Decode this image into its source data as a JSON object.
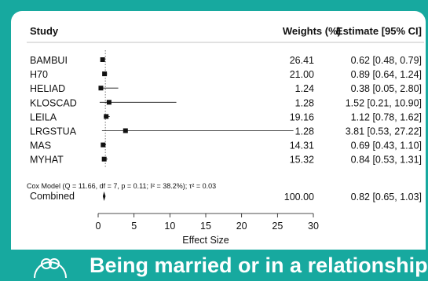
{
  "header": {
    "study": "Study",
    "weights": "Weights (%)",
    "estimate": "Estimate [95% CI]"
  },
  "chart_data": {
    "type": "forest",
    "xlabel": "Effect Size",
    "xlim": [
      0,
      30
    ],
    "xticks": [
      0,
      5,
      10,
      15,
      20,
      25,
      30
    ],
    "reference_line": 1,
    "studies": [
      {
        "name": "BAMBUI",
        "estimate": 0.62,
        "lower": 0.48,
        "upper": 0.79,
        "weight": "26.41",
        "ci_text": "0.62 [0.48, 0.79]"
      },
      {
        "name": "H70",
        "estimate": 0.89,
        "lower": 0.64,
        "upper": 1.24,
        "weight": "21.00",
        "ci_text": "0.89 [0.64, 1.24]"
      },
      {
        "name": "HELIAD",
        "estimate": 0.38,
        "lower": 0.05,
        "upper": 2.8,
        "weight": "1.24",
        "ci_text": "0.38 [0.05, 2.80]"
      },
      {
        "name": "KLOSCAD",
        "estimate": 1.52,
        "lower": 0.21,
        "upper": 10.9,
        "weight": "1.28",
        "ci_text": "1.52 [0.21, 10.90]"
      },
      {
        "name": "LEILA",
        "estimate": 1.12,
        "lower": 0.78,
        "upper": 1.62,
        "weight": "19.16",
        "ci_text": "1.12 [0.78, 1.62]"
      },
      {
        "name": "LRGSTUA",
        "estimate": 3.81,
        "lower": 0.53,
        "upper": 27.22,
        "weight": "1.28",
        "ci_text": "3.81 [0.53, 27.22]"
      },
      {
        "name": "MAS",
        "estimate": 0.69,
        "lower": 0.43,
        "upper": 1.1,
        "weight": "14.31",
        "ci_text": "0.69 [0.43, 1.10]"
      },
      {
        "name": "MYHAT",
        "estimate": 0.84,
        "lower": 0.53,
        "upper": 1.31,
        "weight": "15.32",
        "ci_text": "0.84 [0.53, 1.31]"
      }
    ],
    "summary": {
      "note": "Cox Model (Q = 11.66, df = 7, p = 0.11; I² = 38.2%); τ² = 0.03",
      "name": "Combined",
      "estimate": 0.82,
      "lower": 0.65,
      "upper": 1.03,
      "weight": "100.00",
      "ci_text": "0.82 [0.65, 1.03]"
    }
  },
  "banner": {
    "title": "Being married or in a relationship",
    "icon": "two-rings-icon",
    "color": "#17a99f"
  }
}
